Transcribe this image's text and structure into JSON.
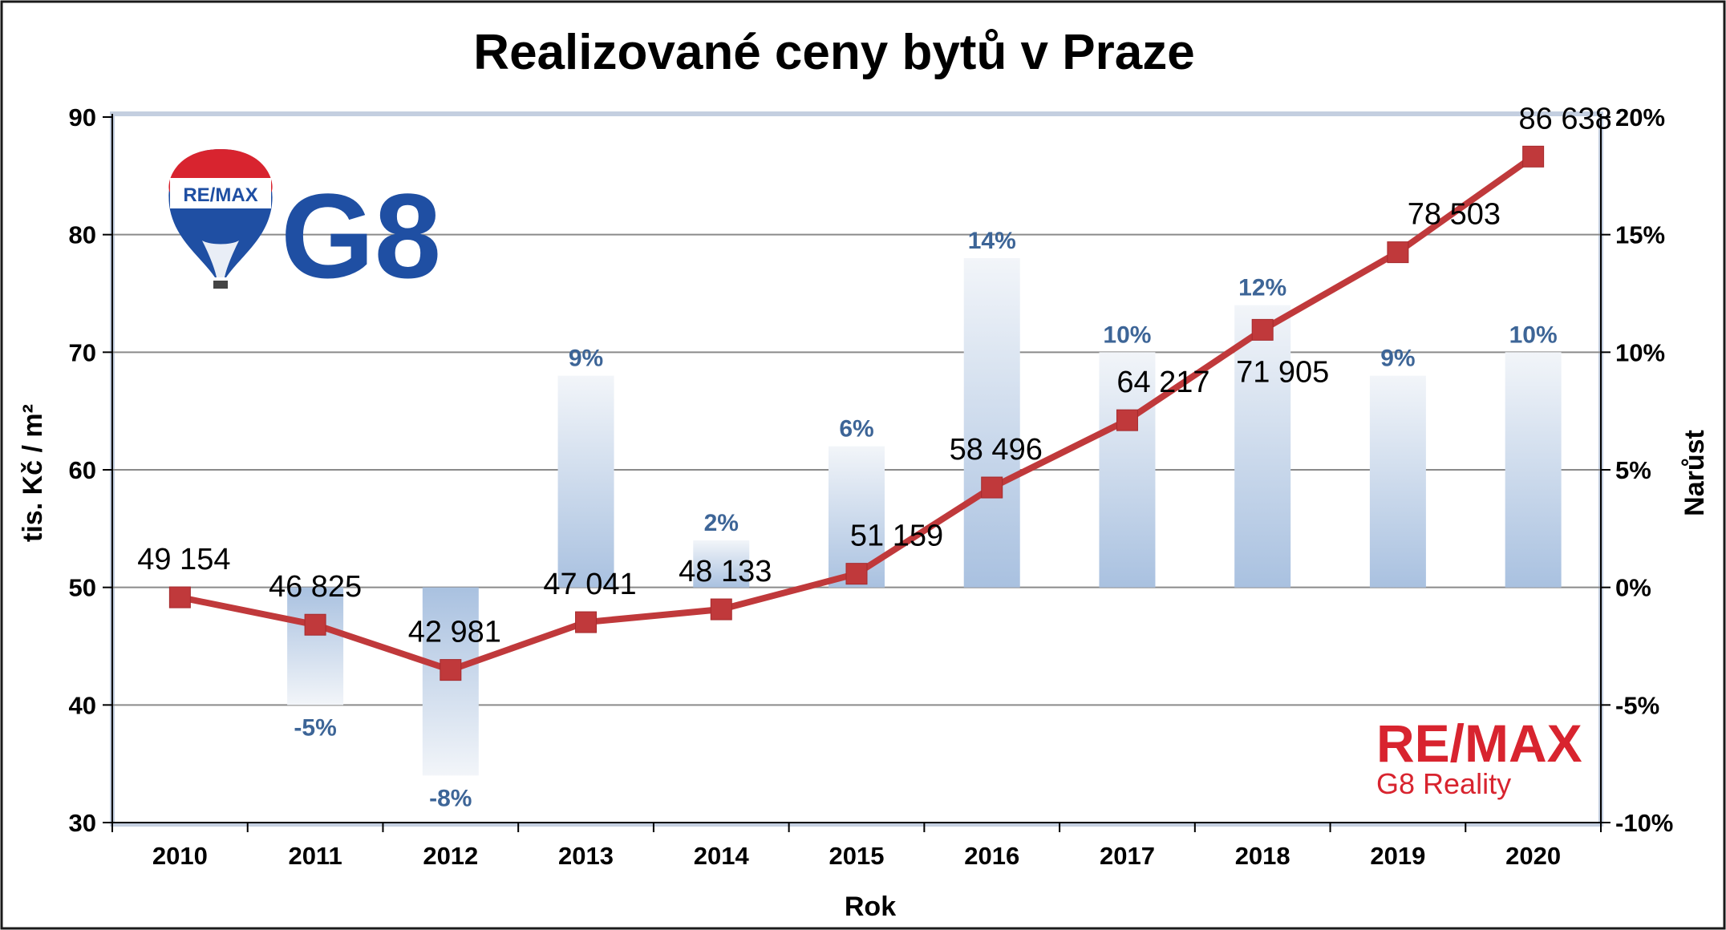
{
  "chart_data": {
    "type": "bar+line",
    "title": "Realizované ceny bytů v Praze",
    "xlabel": "Rok",
    "ylabel": "tis. Kč / m²",
    "y2label": "Narůst",
    "categories": [
      "2010",
      "2011",
      "2012",
      "2013",
      "2014",
      "2015",
      "2016",
      "2017",
      "2018",
      "2019",
      "2020"
    ],
    "ylim": [
      30,
      90
    ],
    "yticks": [
      30,
      40,
      50,
      60,
      70,
      80,
      90
    ],
    "y2lim": [
      -10,
      20
    ],
    "y2ticks": [
      -10,
      -5,
      0,
      5,
      10,
      15,
      20
    ],
    "y2tick_labels": [
      "-10%",
      "-5%",
      "0%",
      "5%",
      "10%",
      "15%",
      "20%"
    ],
    "grid": true,
    "series": [
      {
        "type": "line",
        "axis": "left",
        "color": "#c0393b",
        "values": [
          49.154,
          46.825,
          42.981,
          47.041,
          48.133,
          51.159,
          58.496,
          64.217,
          71.905,
          78.503,
          86.638
        ],
        "labels": [
          "49 154",
          "46 825",
          "42 981",
          "47 041",
          "48 133",
          "51 159",
          "58 496",
          "64 217",
          "71 905",
          "78 503",
          "86 638"
        ]
      },
      {
        "type": "bar",
        "axis": "right",
        "color": "#a9c1e0",
        "values": [
          null,
          -5,
          -8,
          9,
          2,
          6,
          14,
          10,
          12,
          9,
          10
        ],
        "labels": [
          "",
          "-5%",
          "-8%",
          "9%",
          "2%",
          "6%",
          "14%",
          "10%",
          "12%",
          "9%",
          "10%"
        ]
      }
    ]
  },
  "logos": {
    "balloon_text": "RE/MAX",
    "g8_text": "G8",
    "remax_text": "RE/MAX",
    "remax_sub": "G8 Reality"
  }
}
